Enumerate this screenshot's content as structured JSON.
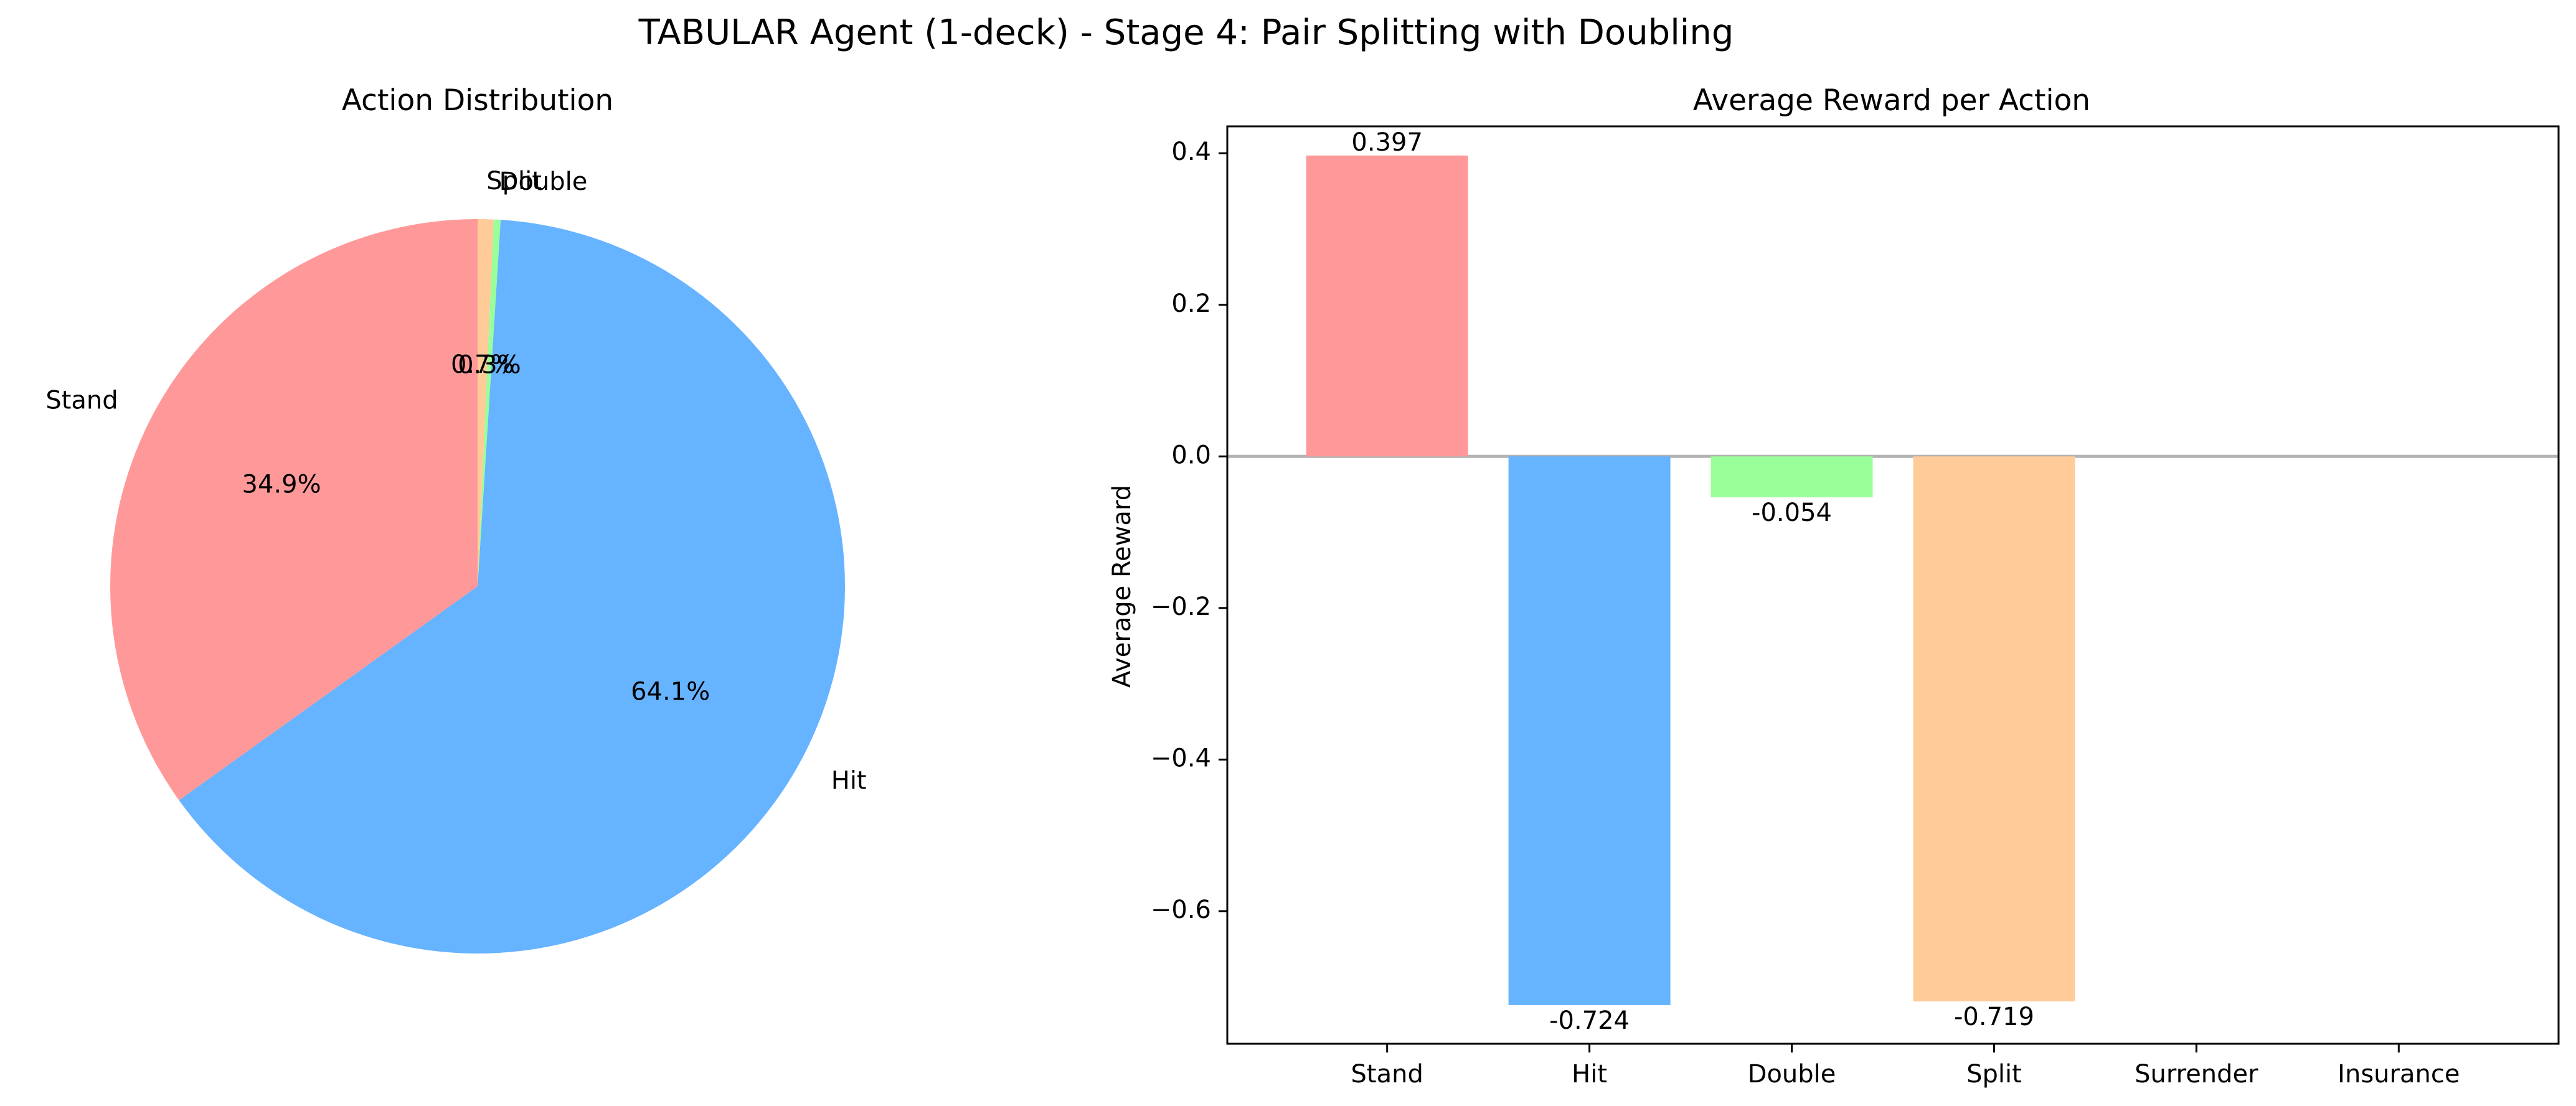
{
  "figure": {
    "title": "TABULAR Agent (1-deck) - Stage 4: Pair Splitting with Doubling"
  },
  "chart_data": [
    {
      "type": "pie",
      "title": "Action Distribution",
      "labels": [
        "Stand",
        "Hit",
        "Double",
        "Split"
      ],
      "values": [
        34.9,
        64.1,
        0.3,
        0.7
      ],
      "pct_labels": [
        "34.9%",
        "64.1%",
        "0.3%",
        "0.7%"
      ],
      "colors": [
        "#ff9999",
        "#66b3ff",
        "#99ff99",
        "#ffcc99"
      ],
      "start_angle_deg": 90,
      "direction": "counterclockwise"
    },
    {
      "type": "bar",
      "title": "Average Reward per Action",
      "xlabel": "",
      "ylabel": "Average Reward",
      "categories": [
        "Stand",
        "Hit",
        "Double",
        "Split",
        "Surrender",
        "Insurance"
      ],
      "values": [
        0.397,
        -0.724,
        -0.054,
        -0.719,
        null,
        null
      ],
      "value_labels": [
        "0.397",
        "-0.724",
        "-0.054",
        "-0.719",
        "",
        ""
      ],
      "colors": [
        "#ff9999",
        "#66b3ff",
        "#99ff99",
        "#ffcc99",
        "#c2c2f0",
        "#ffb3e6"
      ],
      "ylim": [
        -0.775,
        0.4355
      ],
      "yticks": [
        -0.6,
        -0.4,
        -0.2,
        0.0,
        0.2,
        0.4
      ],
      "ytick_labels": [
        "−0.6",
        "−0.4",
        "−0.2",
        "0.0",
        "0.2",
        "0.4"
      ],
      "zero_line_color": "#b3b3b3",
      "grid": false
    }
  ]
}
